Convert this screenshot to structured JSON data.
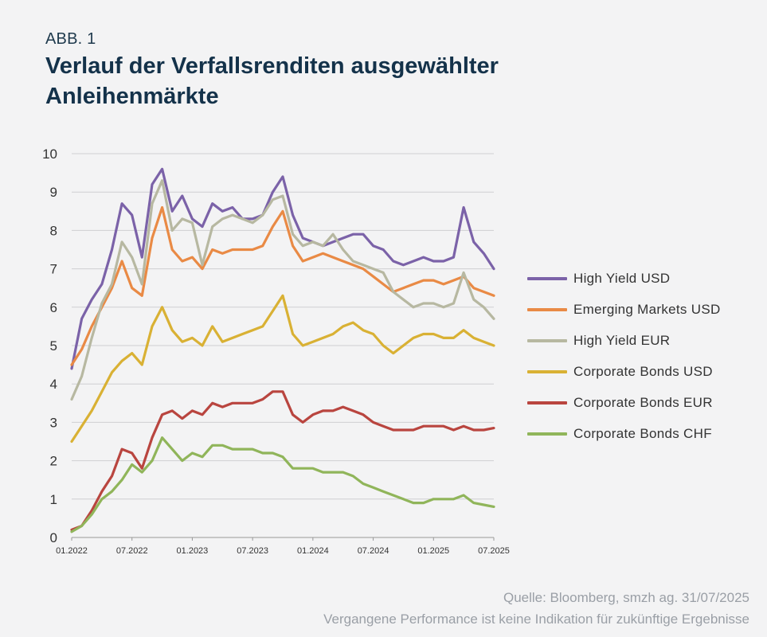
{
  "figure_label": "ABB. 1",
  "title": "Verlauf der Verfallsrenditen ausgewählter Anleihenmärkte",
  "source_line1": "Quelle: Bloomberg, smzh ag. 31/07/2025",
  "source_line2": "Vergangene Performance ist keine Indikation für zukünftige Ergebnisse",
  "chart_data": {
    "type": "line",
    "title": "Verlauf der Verfallsrenditen ausgewählter Anleihenmärkte",
    "xlabel": "",
    "ylabel": "",
    "ylim": [
      0,
      10
    ],
    "yticks": [
      0,
      1,
      2,
      3,
      4,
      5,
      6,
      7,
      8,
      9,
      10
    ],
    "grid": true,
    "legend_position": "right",
    "x_tick_labels": [
      "01.2022",
      "07.2022",
      "01.2023",
      "07.2023",
      "01.2024",
      "07.2024",
      "01.2025",
      "07.2025"
    ],
    "x": [
      "01.2022",
      "02.2022",
      "03.2022",
      "04.2022",
      "05.2022",
      "06.2022",
      "07.2022",
      "08.2022",
      "09.2022",
      "10.2022",
      "11.2022",
      "12.2022",
      "01.2023",
      "02.2023",
      "03.2023",
      "04.2023",
      "05.2023",
      "06.2023",
      "07.2023",
      "08.2023",
      "09.2023",
      "10.2023",
      "11.2023",
      "12.2023",
      "01.2024",
      "02.2024",
      "03.2024",
      "04.2024",
      "05.2024",
      "06.2024",
      "07.2024",
      "08.2024",
      "09.2024",
      "10.2024",
      "11.2024",
      "12.2024",
      "01.2025",
      "02.2025",
      "03.2025",
      "04.2025",
      "05.2025",
      "06.2025",
      "07.2025"
    ],
    "series": [
      {
        "name": "High Yield USD",
        "color": "#7b62a8",
        "values": [
          4.4,
          5.7,
          6.2,
          6.6,
          7.5,
          8.7,
          8.4,
          7.3,
          9.2,
          9.6,
          8.5,
          8.9,
          8.3,
          8.1,
          8.7,
          8.5,
          8.6,
          8.3,
          8.3,
          8.4,
          9.0,
          9.4,
          8.4,
          7.8,
          7.7,
          7.6,
          7.7,
          7.8,
          7.9,
          7.9,
          7.6,
          7.5,
          7.2,
          7.1,
          7.2,
          7.3,
          7.2,
          7.2,
          7.3,
          8.6,
          7.7,
          7.4,
          7.0
        ]
      },
      {
        "name": "Emerging Markets USD",
        "color": "#e98a45",
        "values": [
          4.5,
          4.9,
          5.5,
          6.0,
          6.5,
          7.2,
          6.5,
          6.3,
          7.8,
          8.6,
          7.5,
          7.2,
          7.3,
          7.0,
          7.5,
          7.4,
          7.5,
          7.5,
          7.5,
          7.6,
          8.1,
          8.5,
          7.6,
          7.2,
          7.3,
          7.4,
          7.3,
          7.2,
          7.1,
          7.0,
          6.8,
          6.6,
          6.4,
          6.5,
          6.6,
          6.7,
          6.7,
          6.6,
          6.7,
          6.8,
          6.5,
          6.4,
          6.3
        ]
      },
      {
        "name": "High Yield EUR",
        "color": "#b7b8a1",
        "values": [
          3.6,
          4.2,
          5.2,
          6.1,
          6.6,
          7.7,
          7.3,
          6.6,
          8.7,
          9.3,
          8.0,
          8.3,
          8.2,
          7.1,
          8.1,
          8.3,
          8.4,
          8.3,
          8.2,
          8.4,
          8.8,
          8.9,
          7.9,
          7.6,
          7.7,
          7.6,
          7.9,
          7.5,
          7.2,
          7.1,
          7.0,
          6.9,
          6.4,
          6.2,
          6.0,
          6.1,
          6.1,
          6.0,
          6.1,
          6.9,
          6.2,
          6.0,
          5.7
        ]
      },
      {
        "name": "Corporate Bonds USD",
        "color": "#d9b134",
        "values": [
          2.5,
          2.9,
          3.3,
          3.8,
          4.3,
          4.6,
          4.8,
          4.5,
          5.5,
          6.0,
          5.4,
          5.1,
          5.2,
          5.0,
          5.5,
          5.1,
          5.2,
          5.3,
          5.4,
          5.5,
          5.9,
          6.3,
          5.3,
          5.0,
          5.1,
          5.2,
          5.3,
          5.5,
          5.6,
          5.4,
          5.3,
          5.0,
          4.8,
          5.0,
          5.2,
          5.3,
          5.3,
          5.2,
          5.2,
          5.4,
          5.2,
          5.1,
          5.0
        ]
      },
      {
        "name": "Corporate Bonds EUR",
        "color": "#b9453f",
        "values": [
          0.2,
          0.3,
          0.7,
          1.2,
          1.6,
          2.3,
          2.2,
          1.8,
          2.6,
          3.2,
          3.3,
          3.1,
          3.3,
          3.2,
          3.5,
          3.4,
          3.5,
          3.5,
          3.5,
          3.6,
          3.8,
          3.8,
          3.2,
          3.0,
          3.2,
          3.3,
          3.3,
          3.4,
          3.3,
          3.2,
          3.0,
          2.9,
          2.8,
          2.8,
          2.8,
          2.9,
          2.9,
          2.9,
          2.8,
          2.9,
          2.8,
          2.8,
          2.85
        ]
      },
      {
        "name": "Corporate Bonds CHF",
        "color": "#90b55a",
        "values": [
          0.15,
          0.3,
          0.6,
          1.0,
          1.2,
          1.5,
          1.9,
          1.7,
          2.0,
          2.6,
          2.3,
          2.0,
          2.2,
          2.1,
          2.4,
          2.4,
          2.3,
          2.3,
          2.3,
          2.2,
          2.2,
          2.1,
          1.8,
          1.8,
          1.8,
          1.7,
          1.7,
          1.7,
          1.6,
          1.4,
          1.3,
          1.2,
          1.1,
          1.0,
          0.9,
          0.9,
          1.0,
          1.0,
          1.0,
          1.1,
          0.9,
          0.85,
          0.8
        ]
      }
    ]
  }
}
